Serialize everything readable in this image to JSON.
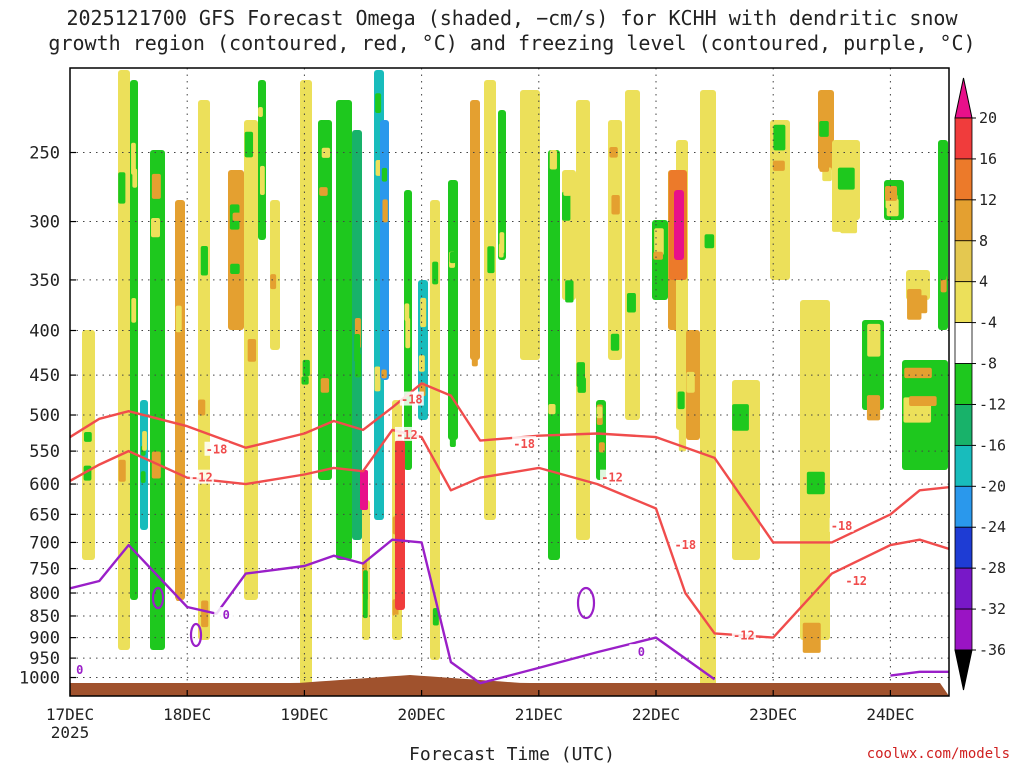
{
  "header": {
    "title_line1": "2025121700 GFS Forecast Omega (shaded, −cm/s) for KCHH with dendritic snow",
    "title_line2": "growth region (contoured, red, °C) and freezing level (contoured, purple, °C)"
  },
  "footer": {
    "watermark": "coolwx.com/models"
  },
  "chart_data": {
    "type": "heatmap",
    "title": "2025121700 GFS Forecast Omega (shaded, −cm/s) for KCHH with dendritic snow growth region (contoured, red, °C) and freezing level (contoured, purple, °C)",
    "xlabel": "Forecast Time (UTC)",
    "ylabel": "",
    "y_scale": "log",
    "y_reversed": true,
    "xlim": [
      "2025-12-17T00",
      "2025-12-24T12"
    ],
    "ylim": [
      1050,
      200
    ],
    "x_tick_labels": [
      "17DEC",
      "18DEC",
      "19DEC",
      "20DEC",
      "21DEC",
      "22DEC",
      "23DEC",
      "24DEC"
    ],
    "x_tick_sublabel": "2025",
    "y_ticks": [
      250,
      300,
      350,
      400,
      450,
      500,
      550,
      600,
      650,
      700,
      750,
      800,
      850,
      900,
      950,
      1000
    ],
    "grid": "dotted",
    "colorbar": {
      "placement": "right",
      "labels": [
        20,
        16,
        12,
        8,
        4,
        -4,
        -8,
        -12,
        -16,
        -20,
        -24,
        -28,
        -32,
        -36
      ],
      "colors": [
        "#e8108a",
        "#f03c3c",
        "#ec7a2a",
        "#e4a030",
        "#e4c850",
        "#ece05a",
        "#ffffff",
        "#1ec81e",
        "#18b26a",
        "#18bcbc",
        "#2a98ec",
        "#1e3cd4",
        "#7818c8",
        "#9a14c4",
        "#a8a8a8",
        "#000000"
      ]
    },
    "series": [
      {
        "name": "-18",
        "color": "#f04c4c",
        "x": [
          "2025-12-17T00",
          "2025-12-17T06",
          "2025-12-17T12",
          "2025-12-18T00",
          "2025-12-18T12",
          "2025-12-19T00",
          "2025-12-19T06",
          "2025-12-19T12",
          "2025-12-19T18",
          "2025-12-20T00",
          "2025-12-20T06",
          "2025-12-20T12",
          "2025-12-21T00",
          "2025-12-21T12",
          "2025-12-22T00",
          "2025-12-22T12",
          "2025-12-23T00",
          "2025-12-23T12",
          "2025-12-24T00",
          "2025-12-24T06",
          "2025-12-24T12"
        ],
        "y": [
          530,
          505,
          495,
          515,
          545,
          525,
          508,
          520,
          490,
          460,
          475,
          535,
          528,
          525,
          530,
          560,
          700,
          700,
          650,
          610,
          605
        ]
      },
      {
        "name": "-12",
        "color": "#f04c4c",
        "x": [
          "2025-12-17T00",
          "2025-12-17T06",
          "2025-12-17T12",
          "2025-12-18T00",
          "2025-12-18T12",
          "2025-12-19T00",
          "2025-12-19T06",
          "2025-12-19T12",
          "2025-12-19T18",
          "2025-12-20T00",
          "2025-12-20T06",
          "2025-12-20T12",
          "2025-12-21T00",
          "2025-12-21T12",
          "2025-12-22T00",
          "2025-12-22T06",
          "2025-12-22T12",
          "2025-12-23T00",
          "2025-12-23T12",
          "2025-12-24T00",
          "2025-12-24T06",
          "2025-12-24T12"
        ],
        "y": [
          595,
          570,
          550,
          590,
          600,
          585,
          575,
          580,
          520,
          530,
          610,
          590,
          575,
          600,
          640,
          800,
          890,
          900,
          760,
          705,
          695,
          712
        ]
      },
      {
        "name": "0",
        "color": "#9a1fc8",
        "x": [
          "2025-12-17T00",
          "2025-12-17T06",
          "2025-12-17T12",
          "2025-12-18T00",
          "2025-12-18T06",
          "2025-12-18T12",
          "2025-12-19T00",
          "2025-12-19T06",
          "2025-12-19T12",
          "2025-12-19T18",
          "2025-12-20T00",
          "2025-12-20T06",
          "2025-12-20T12",
          "2025-12-21T00",
          "2025-12-21T12",
          "2025-12-22T00",
          "2025-12-22T12"
        ],
        "y": [
          790,
          775,
          705,
          830,
          845,
          760,
          745,
          725,
          740,
          695,
          700,
          960,
          1015,
          975,
          935,
          900,
          1005
        ]
      },
      {
        "name": "0 (east)",
        "color": "#9a1fc8",
        "x": [
          "2025-12-24T00",
          "2025-12-24T06",
          "2025-12-24T12"
        ],
        "y": [
          995,
          985,
          985
        ]
      }
    ],
    "contour_labels": [
      {
        "text": "-18",
        "x": "2025-12-18T06",
        "y": 548
      },
      {
        "text": "-12",
        "x": "2025-12-18T03",
        "y": 590
      },
      {
        "text": "-18",
        "x": "2025-12-19T22",
        "y": 480
      },
      {
        "text": "-12",
        "x": "2025-12-19T21",
        "y": 527
      },
      {
        "text": "-18",
        "x": "2025-12-20T21",
        "y": 540
      },
      {
        "text": "-12",
        "x": "2025-12-21T15",
        "y": 590
      },
      {
        "text": "-18",
        "x": "2025-12-22T06",
        "y": 705
      },
      {
        "text": "-12",
        "x": "2025-12-22T18",
        "y": 895
      },
      {
        "text": "-18",
        "x": "2025-12-23T14",
        "y": 670
      },
      {
        "text": "-12",
        "x": "2025-12-23T17",
        "y": 775
      },
      {
        "text": "0",
        "x": "2025-12-17T02",
        "y": 980
      },
      {
        "text": "0",
        "x": "2025-12-18T08",
        "y": 848
      },
      {
        "text": "0",
        "x": "2025-12-21T21",
        "y": 935
      }
    ]
  }
}
